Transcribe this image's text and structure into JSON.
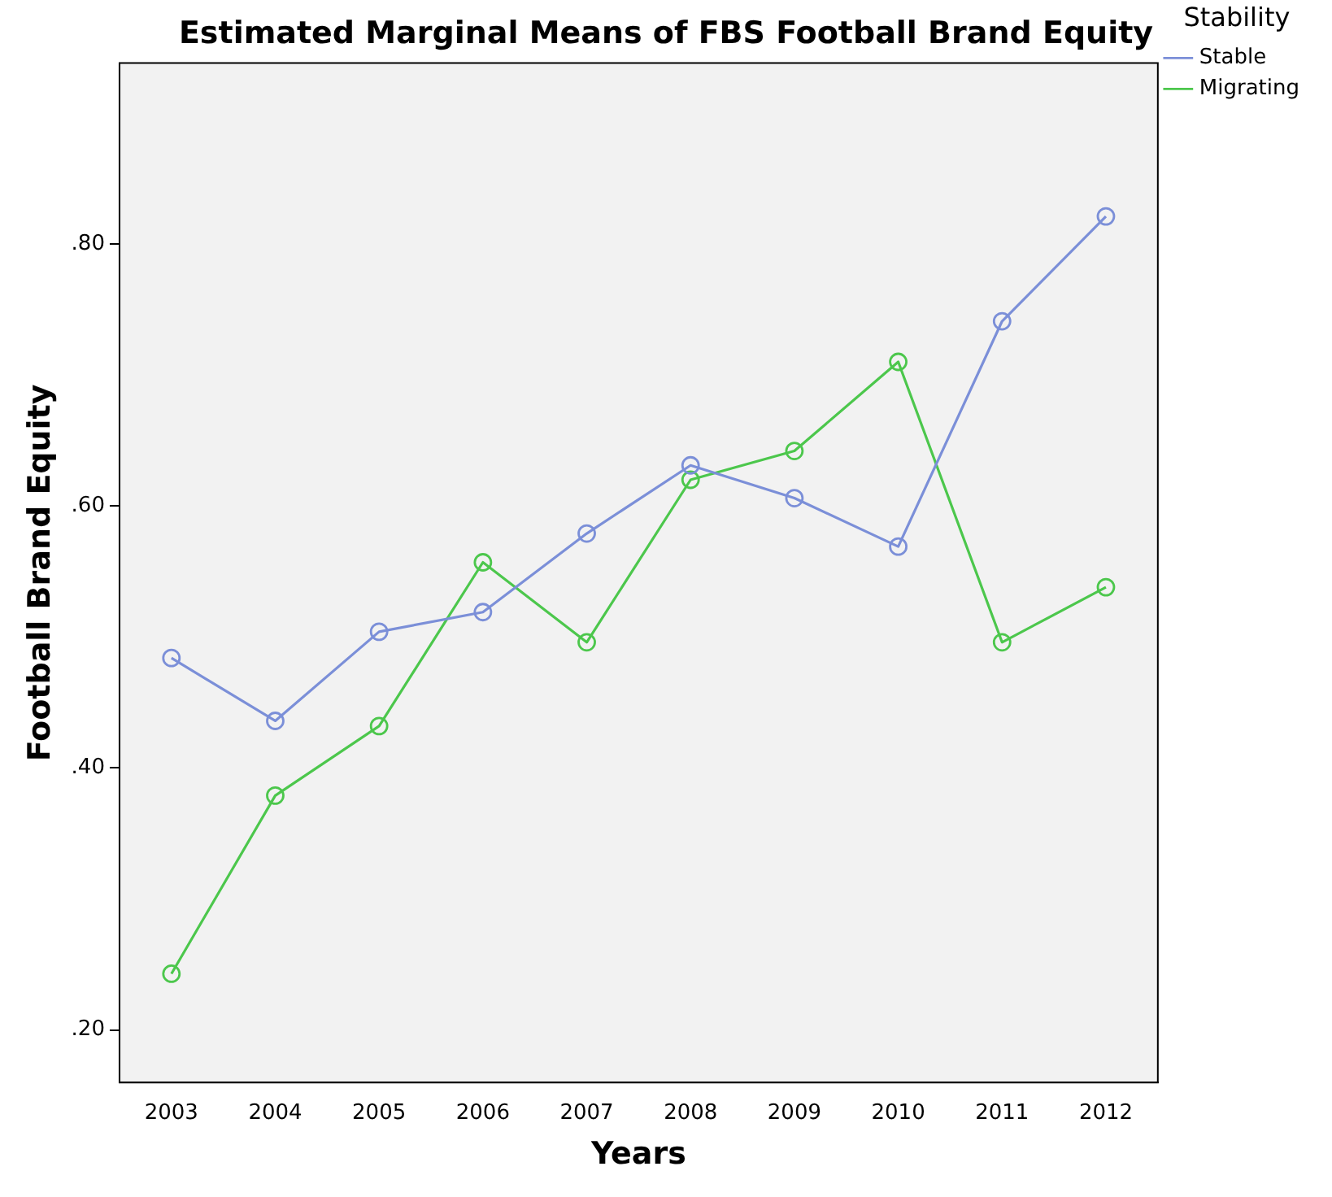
{
  "chart_data": {
    "type": "line",
    "title": "Estimated Marginal Means of FBS Football Brand Equity",
    "xlabel": "Years",
    "ylabel": "Football Brand Equity",
    "legend_title": "Stability",
    "categories": [
      "2003",
      "2004",
      "2005",
      "2006",
      "2007",
      "2008",
      "2009",
      "2010",
      "2011",
      "2012"
    ],
    "series": [
      {
        "name": "Stable",
        "color": "#7b8fd8",
        "values": [
          0.484,
          0.436,
          0.504,
          0.519,
          0.579,
          0.631,
          0.606,
          0.569,
          0.741,
          0.821
        ]
      },
      {
        "name": "Migrating",
        "color": "#4cc74c",
        "values": [
          0.243,
          0.379,
          0.432,
          0.557,
          0.496,
          0.62,
          0.642,
          0.71,
          0.496,
          0.538
        ]
      }
    ],
    "ylim": [
      0.16,
      0.938
    ],
    "yticks": [
      {
        "value": 0.2,
        "label": ".20"
      },
      {
        "value": 0.4,
        "label": ".40"
      },
      {
        "value": 0.6,
        "label": ".60"
      },
      {
        "value": 0.8,
        "label": ".80"
      }
    ],
    "grid": false,
    "legend": "top right",
    "marker": "circle",
    "line_style": "solid"
  }
}
